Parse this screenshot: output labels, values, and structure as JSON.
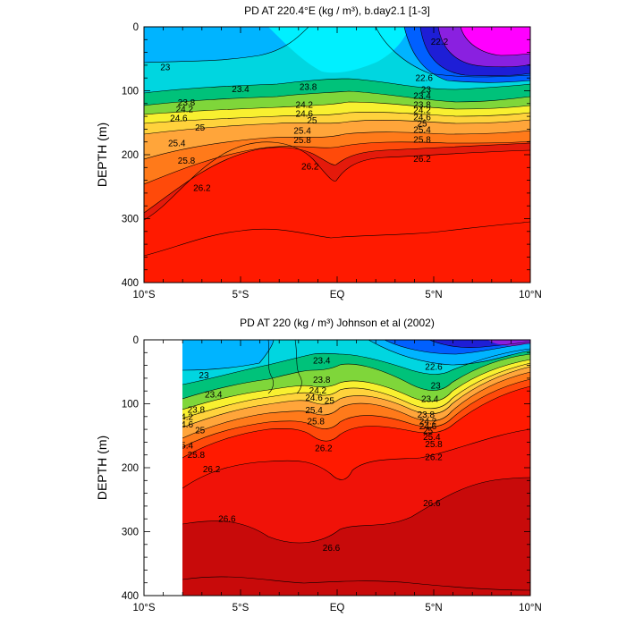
{
  "chart_data": [
    {
      "type": "heatmap",
      "title": "PD AT 220.4°E (kg / m³), b.day2.1 [1-3]",
      "ylabel": "DEPTH (m)",
      "xlim": [
        -10,
        10
      ],
      "ylim": [
        0,
        400
      ],
      "y_inverted": true,
      "xticks": [
        "10°S",
        "5°S",
        "EQ",
        "5°N",
        "10°N"
      ],
      "xtick_values": [
        -10,
        -5,
        0,
        5,
        10
      ],
      "yticks": [
        "0",
        "100",
        "200",
        "300",
        "400"
      ],
      "ytick_values": [
        0,
        100,
        200,
        300,
        400
      ],
      "data_xrange": [
        -10,
        10
      ],
      "contour_levels": [
        22.2,
        22.6,
        23,
        23.4,
        23.8,
        24.2,
        24.6,
        25,
        25.4,
        25.8,
        26.2,
        26.6
      ],
      "contour_labels": [
        {
          "text": "23",
          "x": -8.9,
          "y": 63
        },
        {
          "text": "23.4",
          "x": -5.0,
          "y": 97
        },
        {
          "text": "23.8",
          "x": -7.8,
          "y": 118
        },
        {
          "text": "24.2",
          "x": -7.9,
          "y": 129
        },
        {
          "text": "24.6",
          "x": -8.2,
          "y": 143
        },
        {
          "text": "25",
          "x": -7.1,
          "y": 157
        },
        {
          "text": "25.4",
          "x": -8.3,
          "y": 182
        },
        {
          "text": "25.8",
          "x": -7.8,
          "y": 209
        },
        {
          "text": "26.2",
          "x": -7.0,
          "y": 252
        },
        {
          "text": "23.8",
          "x": -1.5,
          "y": 94
        },
        {
          "text": "24.2",
          "x": -1.7,
          "y": 122
        },
        {
          "text": "24.6",
          "x": -1.7,
          "y": 136
        },
        {
          "text": "25",
          "x": -1.3,
          "y": 146
        },
        {
          "text": "25.4",
          "x": -1.8,
          "y": 162
        },
        {
          "text": "25.8",
          "x": -1.8,
          "y": 177
        },
        {
          "text": "26.2",
          "x": -1.4,
          "y": 218
        },
        {
          "text": "22.2",
          "x": 5.3,
          "y": 23
        },
        {
          "text": "22.6",
          "x": 4.5,
          "y": 80
        },
        {
          "text": "23",
          "x": 4.6,
          "y": 98
        },
        {
          "text": "23.4",
          "x": 4.4,
          "y": 108
        },
        {
          "text": "23.8",
          "x": 4.4,
          "y": 122
        },
        {
          "text": "24.2",
          "x": 4.4,
          "y": 130
        },
        {
          "text": "24.6",
          "x": 4.4,
          "y": 141
        },
        {
          "text": "25",
          "x": 4.4,
          "y": 151
        },
        {
          "text": "25.4",
          "x": 4.4,
          "y": 161
        },
        {
          "text": "25.8",
          "x": 4.4,
          "y": 176
        },
        {
          "text": "26.2",
          "x": 4.4,
          "y": 206
        }
      ]
    },
    {
      "type": "heatmap",
      "title": "PD AT 220 (kg / m³) Johnson et al (2002)",
      "ylabel": "DEPTH (m)",
      "xlim": [
        -10,
        10
      ],
      "ylim": [
        0,
        400
      ],
      "y_inverted": true,
      "xticks": [
        "10°S",
        "5°S",
        "EQ",
        "5°N",
        "10°N"
      ],
      "xtick_values": [
        -10,
        -5,
        0,
        5,
        10
      ],
      "yticks": [
        "0",
        "100",
        "200",
        "300",
        "400"
      ],
      "ytick_values": [
        0,
        100,
        200,
        300,
        400
      ],
      "data_xrange": [
        -8,
        10
      ],
      "contour_levels": [
        22.6,
        23,
        23.4,
        23.8,
        24.2,
        24.6,
        25,
        25.4,
        25.8,
        26.2,
        26.6
      ],
      "contour_labels": [
        {
          "text": "23",
          "x": -6.9,
          "y": 55
        },
        {
          "text": "23.4",
          "x": -6.4,
          "y": 85
        },
        {
          "text": "23.8",
          "x": -7.3,
          "y": 109
        },
        {
          "text": "24.2",
          "x": -7.9,
          "y": 120
        },
        {
          "text": "24.6",
          "x": -7.9,
          "y": 132
        },
        {
          "text": "25",
          "x": -7.1,
          "y": 141
        },
        {
          "text": "25.4",
          "x": -7.9,
          "y": 165
        },
        {
          "text": "25.8",
          "x": -7.3,
          "y": 180
        },
        {
          "text": "26.2",
          "x": -6.5,
          "y": 202
        },
        {
          "text": "26.6",
          "x": -5.7,
          "y": 280
        },
        {
          "text": "23.4",
          "x": -0.8,
          "y": 32
        },
        {
          "text": "23.8",
          "x": -0.8,
          "y": 62
        },
        {
          "text": "24.2",
          "x": -1.0,
          "y": 79
        },
        {
          "text": "24.6",
          "x": -1.2,
          "y": 90
        },
        {
          "text": "25",
          "x": -0.4,
          "y": 95
        },
        {
          "text": "25.4",
          "x": -1.2,
          "y": 110
        },
        {
          "text": "25.8",
          "x": -1.1,
          "y": 127
        },
        {
          "text": "26.2",
          "x": -0.7,
          "y": 169
        },
        {
          "text": "26.6",
          "x": -0.3,
          "y": 325
        },
        {
          "text": "22.6",
          "x": 5.0,
          "y": 42
        },
        {
          "text": "23",
          "x": 5.1,
          "y": 71
        },
        {
          "text": "23.4",
          "x": 4.8,
          "y": 92
        },
        {
          "text": "23.8",
          "x": 4.6,
          "y": 117
        },
        {
          "text": "24.2",
          "x": 4.7,
          "y": 127
        },
        {
          "text": "24.6",
          "x": 4.7,
          "y": 135
        },
        {
          "text": "25",
          "x": 4.7,
          "y": 142
        },
        {
          "text": "25.4",
          "x": 4.9,
          "y": 152
        },
        {
          "text": "25.8",
          "x": 5.0,
          "y": 163
        },
        {
          "text": "26.2",
          "x": 5.0,
          "y": 183
        },
        {
          "text": "26.6",
          "x": 4.9,
          "y": 255
        }
      ]
    }
  ]
}
